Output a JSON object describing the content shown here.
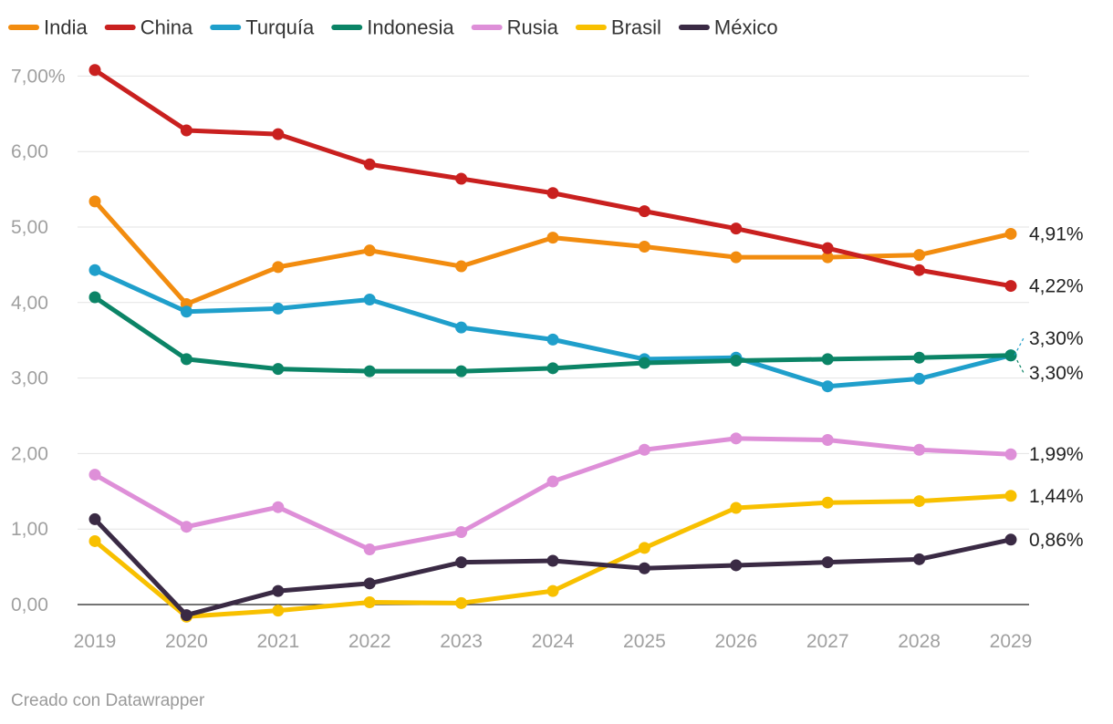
{
  "chart_data": {
    "type": "line",
    "title": "",
    "xlabel": "",
    "ylabel": "",
    "x": [
      "2019",
      "2020",
      "2021",
      "2022",
      "2023",
      "2024",
      "2025",
      "2026",
      "2027",
      "2028",
      "2029"
    ],
    "ylim": [
      0,
      7
    ],
    "y_ticks": [
      0,
      1,
      2,
      3,
      4,
      5,
      6,
      7
    ],
    "y_tick_labels": [
      "0,00",
      "1,00",
      "2,00",
      "3,00",
      "4,00",
      "5,00",
      "6,00",
      "7,00%"
    ],
    "grid": true,
    "legend_position": "top-left",
    "series": [
      {
        "name": "India",
        "color": "#f28c0f",
        "values": [
          5.34,
          3.98,
          4.47,
          4.69,
          4.48,
          4.86,
          4.74,
          4.6,
          4.6,
          4.63,
          4.91
        ],
        "end_label": "4,91%"
      },
      {
        "name": "China",
        "color": "#c9201f",
        "values": [
          7.08,
          6.28,
          6.23,
          5.83,
          5.64,
          5.45,
          5.21,
          4.98,
          4.72,
          4.43,
          4.22
        ],
        "end_label": "4,22%"
      },
      {
        "name": "Turquía",
        "color": "#1f9fcb",
        "values": [
          4.43,
          3.88,
          3.92,
          4.04,
          3.67,
          3.51,
          3.25,
          3.27,
          2.89,
          2.99,
          3.3
        ],
        "end_label": "3,30%"
      },
      {
        "name": "Indonesia",
        "color": "#0b8466",
        "values": [
          4.07,
          3.25,
          3.12,
          3.09,
          3.09,
          3.13,
          3.2,
          3.23,
          3.25,
          3.27,
          3.3
        ],
        "end_label": "3,30%"
      },
      {
        "name": "Rusia",
        "color": "#de8fd8",
        "values": [
          1.72,
          1.03,
          1.29,
          0.73,
          0.96,
          1.63,
          2.05,
          2.2,
          2.18,
          2.05,
          1.99
        ],
        "end_label": "1,99%"
      },
      {
        "name": "Brasil",
        "color": "#f8c000",
        "values": [
          0.84,
          -0.16,
          -0.08,
          0.03,
          0.02,
          0.18,
          0.75,
          1.28,
          1.35,
          1.37,
          1.44
        ],
        "end_label": "1,44%"
      },
      {
        "name": "México",
        "color": "#3a2a44",
        "values": [
          1.13,
          -0.14,
          0.18,
          0.28,
          0.56,
          0.58,
          0.48,
          0.52,
          0.56,
          0.6,
          0.86
        ],
        "end_label": "0,86%"
      }
    ]
  },
  "footer": {
    "credit": "Creado con Datawrapper"
  }
}
